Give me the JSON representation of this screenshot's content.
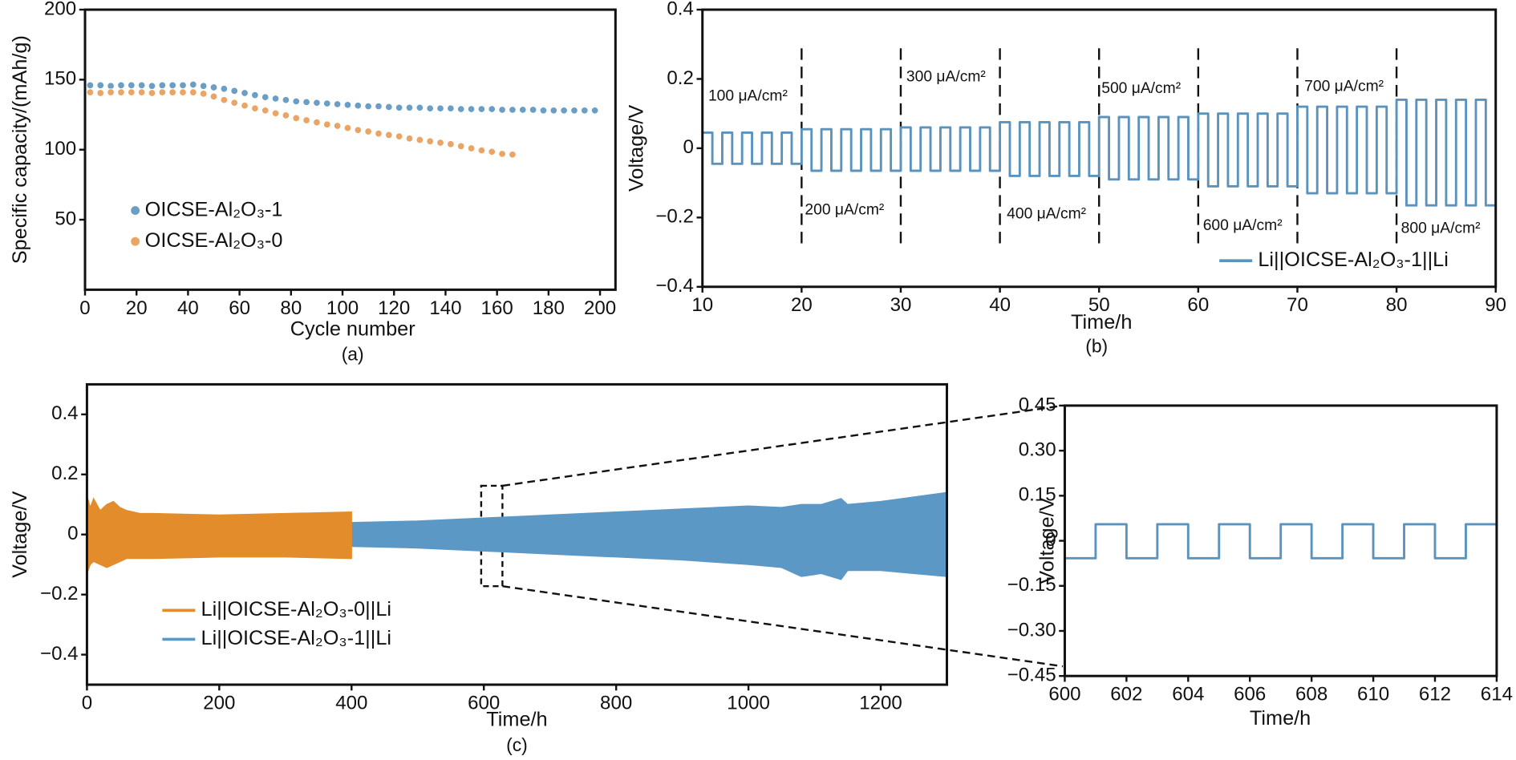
{
  "chart_data": [
    {
      "type": "scatter",
      "caption": "(a)",
      "xlabel": "Cycle number",
      "ylabel": "Specific capacity/(mAh/g)",
      "xlim": [
        0,
        206
      ],
      "ylim": [
        0,
        200
      ],
      "xticks": [
        0,
        20,
        40,
        60,
        80,
        100,
        120,
        140,
        160,
        180,
        200
      ],
      "yticks": [
        50,
        100,
        150,
        200
      ],
      "legend": "lower left",
      "series": [
        {
          "name": "OICSE-Al₂O₃-1",
          "color": "#6a9ec5",
          "x": [
            2,
            6,
            10,
            14,
            18,
            22,
            26,
            30,
            34,
            38,
            42,
            46,
            50,
            54,
            58,
            62,
            66,
            70,
            74,
            78,
            82,
            86,
            90,
            94,
            98,
            102,
            106,
            110,
            114,
            118,
            122,
            126,
            130,
            134,
            138,
            142,
            146,
            150,
            154,
            158,
            162,
            166,
            170,
            174,
            178,
            182,
            186,
            190,
            194,
            198
          ],
          "values": [
            146,
            146,
            145.5,
            146,
            146,
            146,
            145.5,
            146,
            146,
            146,
            146.5,
            145.5,
            144.5,
            143.5,
            142,
            140.5,
            139,
            137.5,
            136.5,
            135.5,
            134.5,
            134,
            133.5,
            133,
            132.5,
            132,
            131.5,
            131,
            131,
            130.5,
            130,
            130,
            130,
            129.5,
            129.5,
            129.5,
            129,
            129,
            129,
            129,
            128.5,
            128.5,
            128.5,
            128.5,
            128,
            128,
            128,
            128,
            128,
            128
          ]
        },
        {
          "name": "OICSE-Al₂O₃-0",
          "color": "#eaa464",
          "x": [
            2,
            6,
            10,
            14,
            18,
            22,
            26,
            30,
            34,
            38,
            42,
            46,
            50,
            54,
            58,
            62,
            66,
            70,
            74,
            78,
            82,
            86,
            90,
            94,
            98,
            102,
            106,
            110,
            114,
            118,
            122,
            126,
            130,
            134,
            138,
            142,
            146,
            150,
            154,
            158,
            162,
            166
          ],
          "values": [
            141,
            140.5,
            141,
            141,
            141,
            141,
            140.5,
            141,
            141,
            141,
            141,
            140,
            138,
            135.5,
            133.5,
            131.5,
            129.5,
            128,
            126,
            124.5,
            122.5,
            121,
            119.5,
            118,
            117,
            115.5,
            114,
            113,
            111.5,
            110.5,
            109.5,
            108,
            107,
            106,
            105,
            104,
            102.5,
            101,
            99.5,
            98.5,
            97,
            96.5
          ]
        }
      ]
    },
    {
      "type": "line",
      "caption": "(b)",
      "xlabel": "Time/h",
      "ylabel": "Voltage/V",
      "xlim": [
        10,
        90
      ],
      "ylim": [
        -0.4,
        0.4
      ],
      "xticks": [
        10,
        20,
        30,
        40,
        50,
        60,
        70,
        80,
        90
      ],
      "yticks": [
        {
          "value": -0.4,
          "label": "−0.4"
        },
        {
          "value": -0.2,
          "label": "−0.2"
        },
        0,
        0.2,
        0.4
      ],
      "legend": "lower right",
      "dividers": [
        20,
        30,
        40,
        50,
        60,
        70,
        80
      ],
      "annotations": [
        "100 μA/cm²",
        "200 μA/cm²",
        "300 μA/cm²",
        "400 μA/cm²",
        "500 μA/cm²",
        "600 μA/cm²",
        "700 μA/cm²",
        "800 μA/cm²"
      ],
      "series": [
        {
          "name": "Li||OICSE-Al₂O₃-1||Li",
          "color": "#5b93bd",
          "x": [
            10,
            11,
            11,
            12,
            12,
            13,
            13,
            14,
            14,
            15,
            15,
            16,
            16,
            17,
            17,
            18,
            18,
            19,
            19,
            20,
            20,
            21,
            21,
            22,
            22,
            23,
            23,
            24,
            24,
            25,
            25,
            26,
            26,
            27,
            27,
            28,
            28,
            29,
            29,
            30,
            30,
            31,
            31,
            32,
            32,
            33,
            33,
            34,
            34,
            35,
            35,
            36,
            36,
            37,
            37,
            38,
            38,
            39,
            39,
            40,
            40,
            41,
            41,
            42,
            42,
            43,
            43,
            44,
            44,
            45,
            45,
            46,
            46,
            47,
            47,
            48,
            48,
            49,
            49,
            50,
            50,
            51,
            51,
            52,
            52,
            53,
            53,
            54,
            54,
            55,
            55,
            56,
            56,
            57,
            57,
            58,
            58,
            59,
            59,
            60,
            60,
            61,
            61,
            62,
            62,
            63,
            63,
            64,
            64,
            65,
            65,
            66,
            66,
            67,
            67,
            68,
            68,
            69,
            69,
            70,
            70,
            71,
            71,
            72,
            72,
            73,
            73,
            74,
            74,
            75,
            75,
            76,
            76,
            77,
            77,
            78,
            78,
            79,
            79,
            80,
            80,
            81,
            81,
            82,
            82,
            83,
            83,
            84,
            84,
            85,
            85,
            86,
            86,
            87,
            87,
            88,
            88,
            89,
            89,
            90
          ],
          "values": [
            0.045,
            0.045,
            -0.045,
            -0.045,
            0.045,
            0.045,
            -0.045,
            -0.045,
            0.045,
            0.045,
            -0.045,
            -0.045,
            0.045,
            0.045,
            -0.045,
            -0.045,
            0.045,
            0.045,
            -0.045,
            -0.045,
            0.055,
            0.055,
            -0.065,
            -0.065,
            0.055,
            0.055,
            -0.065,
            -0.065,
            0.055,
            0.055,
            -0.065,
            -0.065,
            0.055,
            0.055,
            -0.065,
            -0.065,
            0.055,
            0.055,
            -0.065,
            -0.065,
            0.06,
            0.06,
            -0.065,
            -0.065,
            0.06,
            0.06,
            -0.065,
            -0.065,
            0.06,
            0.06,
            -0.065,
            -0.065,
            0.06,
            0.06,
            -0.065,
            -0.065,
            0.06,
            0.06,
            -0.065,
            -0.065,
            0.075,
            0.075,
            -0.08,
            -0.08,
            0.075,
            0.075,
            -0.08,
            -0.08,
            0.075,
            0.075,
            -0.08,
            -0.08,
            0.075,
            0.075,
            -0.08,
            -0.08,
            0.075,
            0.075,
            -0.08,
            -0.08,
            0.09,
            0.09,
            -0.09,
            -0.09,
            0.09,
            0.09,
            -0.09,
            -0.09,
            0.09,
            0.09,
            -0.09,
            -0.09,
            0.09,
            0.09,
            -0.09,
            -0.09,
            0.09,
            0.09,
            -0.09,
            -0.09,
            0.1,
            0.1,
            -0.11,
            -0.11,
            0.1,
            0.1,
            -0.11,
            -0.11,
            0.1,
            0.1,
            -0.11,
            -0.11,
            0.1,
            0.1,
            -0.11,
            -0.11,
            0.1,
            0.1,
            -0.11,
            -0.11,
            0.12,
            0.12,
            -0.13,
            -0.13,
            0.12,
            0.12,
            -0.13,
            -0.13,
            0.12,
            0.12,
            -0.13,
            -0.13,
            0.12,
            0.12,
            -0.13,
            -0.13,
            0.12,
            0.12,
            -0.13,
            -0.13,
            0.14,
            0.14,
            -0.165,
            -0.165,
            0.14,
            0.14,
            -0.165,
            -0.165,
            0.14,
            0.14,
            -0.165,
            -0.165,
            0.14,
            0.14,
            -0.165,
            -0.165,
            0.14,
            0.14,
            -0.165,
            -0.165
          ]
        }
      ]
    },
    {
      "type": "area",
      "caption": "(c)",
      "xlabel": "Time/h",
      "ylabel": "Voltage/V",
      "xlim": [
        0,
        1300
      ],
      "ylim": [
        -0.5,
        0.5
      ],
      "xticks": [
        0,
        200,
        400,
        600,
        800,
        1000,
        1200
      ],
      "yticks": [
        {
          "value": -0.4,
          "label": "−0.4"
        },
        {
          "value": -0.2,
          "label": "−0.2"
        },
        0,
        0.2,
        0.4
      ],
      "legend": "lower left",
      "series": [
        {
          "name": "Li||OICSE-Al₂O₃-1||Li",
          "color": "#5b98c6",
          "x": [
            400,
            500,
            600,
            700,
            800,
            900,
            1000,
            1050,
            1080,
            1110,
            1140,
            1150,
            1200,
            1300
          ],
          "upper": [
            0.04,
            0.045,
            0.055,
            0.065,
            0.075,
            0.085,
            0.095,
            0.09,
            0.1,
            0.1,
            0.12,
            0.1,
            0.11,
            0.14
          ],
          "lower": [
            -0.04,
            -0.045,
            -0.055,
            -0.065,
            -0.075,
            -0.085,
            -0.1,
            -0.11,
            -0.14,
            -0.13,
            -0.15,
            -0.12,
            -0.12,
            -0.14
          ]
        },
        {
          "name": "Li||OICSE-Al₂O₃-0||Li",
          "color": "#e38c2b",
          "x": [
            0,
            5,
            10,
            20,
            30,
            40,
            50,
            60,
            80,
            100,
            200,
            300,
            400
          ],
          "upper": [
            0.13,
            0.09,
            0.12,
            0.08,
            0.1,
            0.11,
            0.09,
            0.08,
            0.07,
            0.07,
            0.065,
            0.07,
            0.075
          ],
          "lower": [
            -0.13,
            -0.1,
            -0.09,
            -0.1,
            -0.11,
            -0.1,
            -0.09,
            -0.08,
            -0.08,
            -0.08,
            -0.075,
            -0.075,
            -0.08
          ]
        }
      ]
    },
    {
      "type": "line",
      "xlabel": "Time/h",
      "ylabel": "Voltage/V",
      "xlim": [
        600,
        614
      ],
      "ylim": [
        -0.45,
        0.45
      ],
      "xticks": [
        600,
        602,
        604,
        606,
        608,
        610,
        612,
        614
      ],
      "yticks": [
        {
          "value": -0.45,
          "label": "−0.45"
        },
        {
          "value": -0.3,
          "label": "−0.30"
        },
        {
          "value": -0.15,
          "label": "−0.15"
        },
        0,
        0.15,
        {
          "value": 0.3,
          "label": "0.30"
        },
        0.45
      ],
      "series": [
        {
          "color": "#5b93bd",
          "x": [
            600,
            601,
            601,
            602,
            602,
            603,
            603,
            604,
            604,
            605,
            605,
            606,
            606,
            607,
            607,
            608,
            608,
            609,
            609,
            610,
            610,
            611,
            611,
            612,
            612,
            613,
            613,
            614
          ],
          "values": [
            -0.058,
            -0.058,
            0.055,
            0.055,
            -0.058,
            -0.058,
            0.055,
            0.055,
            -0.058,
            -0.058,
            0.055,
            0.055,
            -0.058,
            -0.058,
            0.055,
            0.055,
            -0.058,
            -0.058,
            0.055,
            0.055,
            -0.058,
            -0.058,
            0.055,
            0.055,
            -0.058,
            -0.058,
            0.055,
            0.055
          ]
        }
      ]
    }
  ]
}
